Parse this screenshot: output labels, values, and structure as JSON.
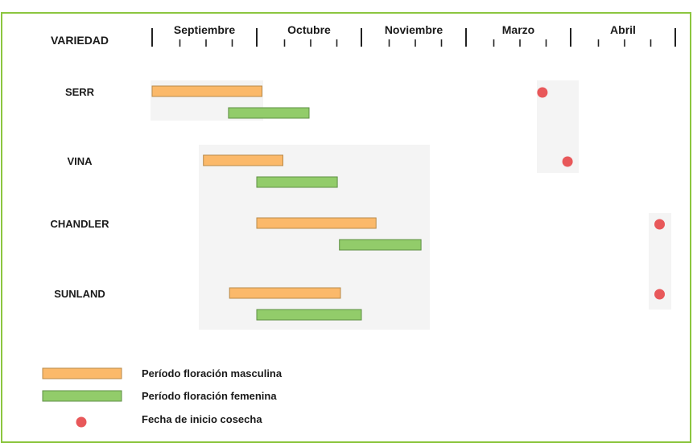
{
  "colors": {
    "frame": "#8cc63f",
    "male": "#fbb96a",
    "male_border": "#b98a4a",
    "female": "#92cc6a",
    "female_border": "#5f8f45",
    "harvest": "#e8585a",
    "shade": "#f4f4f4"
  },
  "chart_data": {
    "type": "gantt",
    "header_label": "VARIEDAD",
    "months": [
      "Septiembre",
      "Octubre",
      "Noviembre",
      "Marzo",
      "Abril"
    ],
    "x_units": "month index (0 = start of Septiembre; each month = 1.0, subdivided in 4 quarters)",
    "varieties": [
      {
        "name": "SERR",
        "male": [
          0.0,
          1.05
        ],
        "female": [
          0.73,
          1.5
        ],
        "harvest": 3.73
      },
      {
        "name": "VINA",
        "male": [
          0.49,
          1.25
        ],
        "female": [
          1.0,
          1.77
        ],
        "harvest": 3.97
      },
      {
        "name": "CHANDLER",
        "male": [
          1.0,
          2.14
        ],
        "female": [
          1.79,
          2.57
        ],
        "harvest": 4.85
      },
      {
        "name": "SUNLAND",
        "male": [
          0.74,
          1.8
        ],
        "female": [
          1.0,
          2.0
        ],
        "harvest": 4.85
      }
    ],
    "legend": [
      {
        "key": "male",
        "label": "Período floración masculina"
      },
      {
        "key": "female",
        "label": "Período floración femenina"
      },
      {
        "key": "harvest",
        "label": "Fecha de inicio cosecha"
      }
    ]
  }
}
